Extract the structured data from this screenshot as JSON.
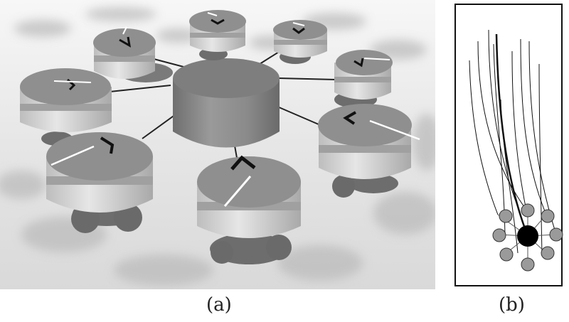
{
  "panels": [
    {
      "id": "a",
      "label": "(a)"
    },
    {
      "id": "b",
      "label": "(b)"
    }
  ],
  "colors": {
    "floor_light": "#efefef",
    "floor_shadow": "#b9b9b9",
    "robot_top": "#8f8f8f",
    "robot_band_light": "#d8d8d8",
    "robot_band_dark": "#9d9d9d",
    "robot_body": "#7d7d7d",
    "wheel": "#6a6a6a",
    "center_object": "#828282",
    "trajectory_line": "#111111",
    "robot_marker": "#9a9a9a",
    "center_marker": "#000000"
  },
  "robot_count": 8
}
